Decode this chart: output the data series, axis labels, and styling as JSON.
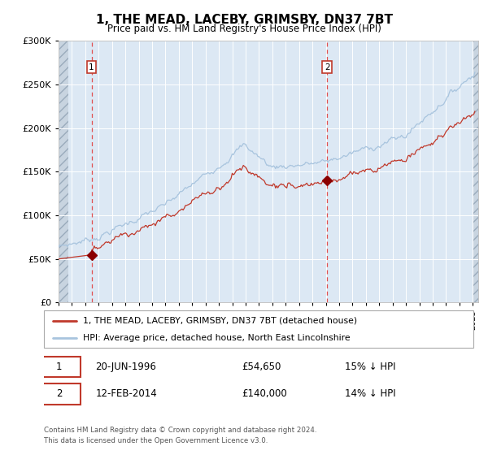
{
  "title": "1, THE MEAD, LACEBY, GRIMSBY, DN37 7BT",
  "subtitle": "Price paid vs. HM Land Registry's House Price Index (HPI)",
  "legend_line1": "1, THE MEAD, LACEBY, GRIMSBY, DN37 7BT (detached house)",
  "legend_line2": "HPI: Average price, detached house, North East Lincolnshire",
  "annotation1_date": "20-JUN-1996",
  "annotation1_price": 54650,
  "annotation1_pct": "15% ↓ HPI",
  "annotation2_date": "12-FEB-2014",
  "annotation2_price": 140000,
  "annotation2_pct": "14% ↓ HPI",
  "footnote1": "Contains HM Land Registry data © Crown copyright and database right 2024.",
  "footnote2": "This data is licensed under the Open Government Licence v3.0.",
  "hpi_color": "#a8c4de",
  "property_color": "#c0392b",
  "dashed_line_color": "#e05050",
  "marker_color": "#8b0000",
  "background_plot": "#dce8f4",
  "ylim": [
    0,
    300000
  ],
  "yticks": [
    0,
    50000,
    100000,
    150000,
    200000,
    250000,
    300000
  ]
}
